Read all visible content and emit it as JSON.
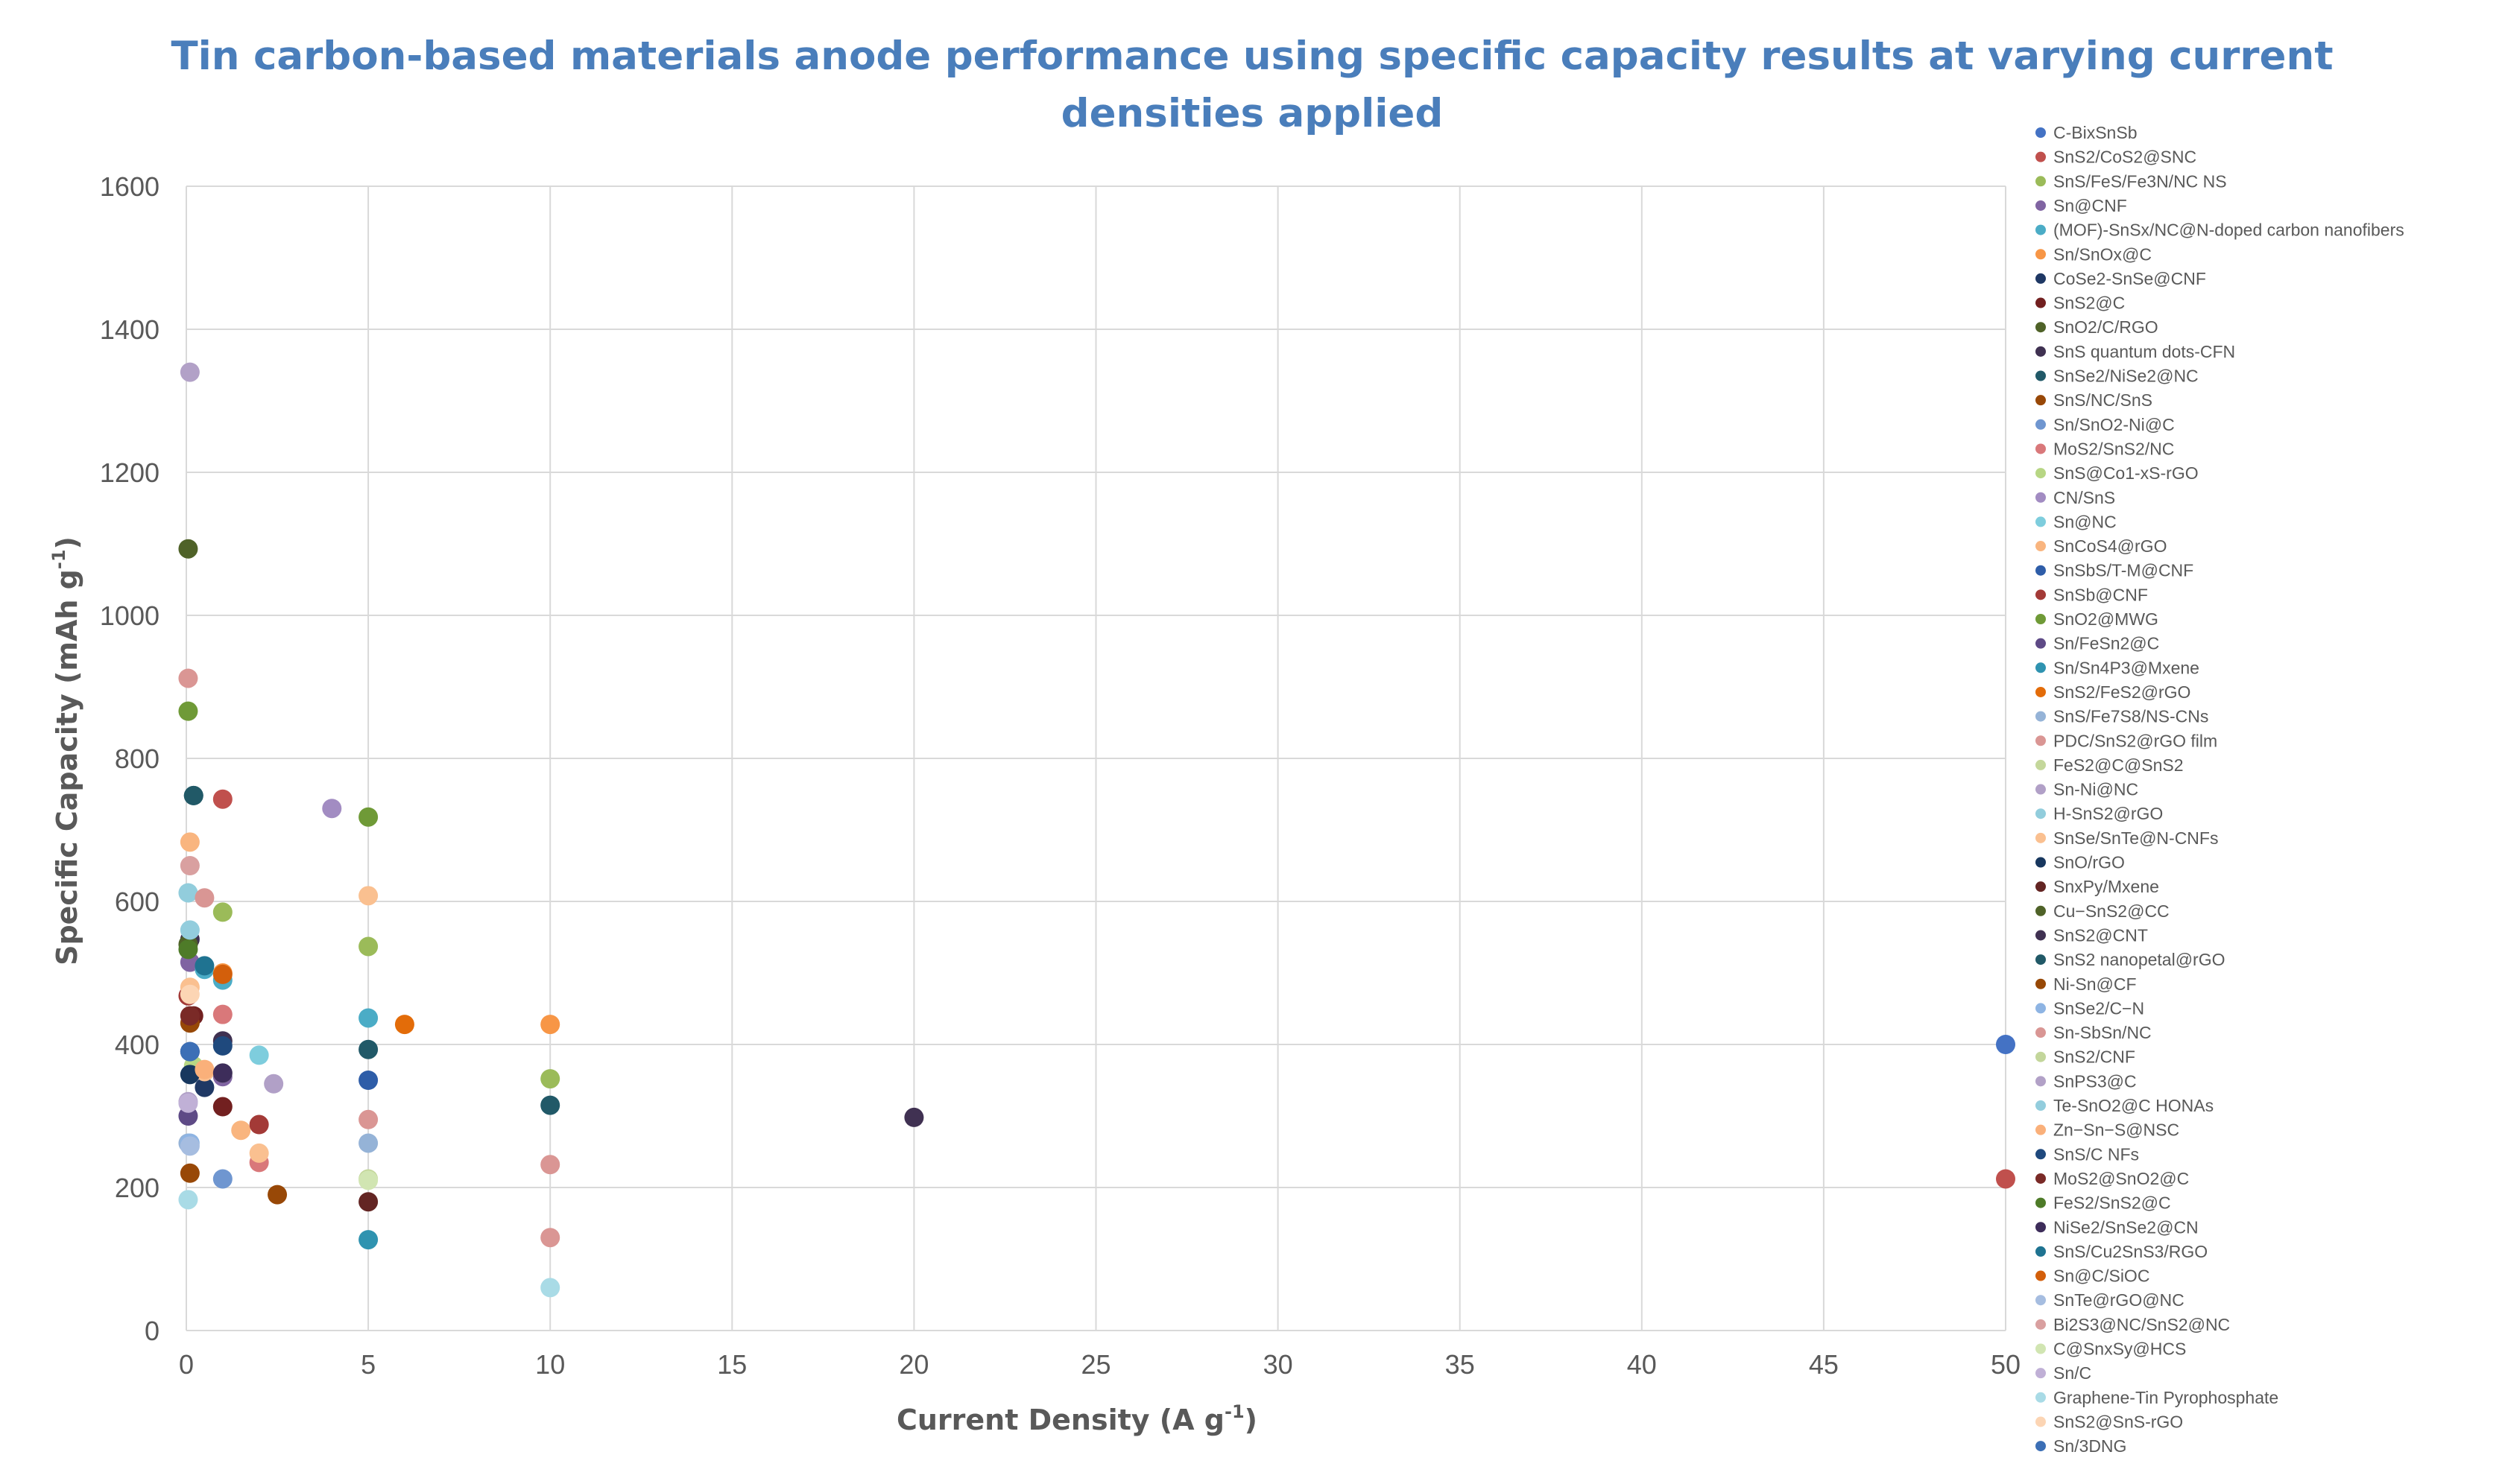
{
  "chart_data": {
    "type": "scatter",
    "title": "Tin carbon-based materials anode performance using specific capacity results at varying current densities applied",
    "title_lines": [
      "Tin carbon-based materials anode performance using specific capacity results at varying current",
      "densities applied"
    ],
    "xlabel": "Current Density (A g-1)",
    "xlabel_parts": {
      "main": "Current Density (A g",
      "sup": "-1",
      "end": ")"
    },
    "ylabel": "Specific Capacity (mAh g-1)",
    "ylabel_parts": {
      "main": "Specific Capacity (mAh g",
      "sup": "-1",
      "end": ")"
    },
    "xlim": [
      0,
      50
    ],
    "ylim": [
      0,
      1600
    ],
    "xticks": [
      0,
      5,
      10,
      15,
      20,
      25,
      30,
      35,
      40,
      45,
      50
    ],
    "yticks": [
      0,
      200,
      400,
      600,
      800,
      1000,
      1200,
      1400,
      1600
    ],
    "grid": true,
    "legend_position": "right",
    "series": [
      {
        "name": "C-BixSnSb",
        "color": "#4472c4",
        "points": [
          [
            50,
            400
          ]
        ]
      },
      {
        "name": "SnS2/CoS2@SNC",
        "color": "#c0504d",
        "points": [
          [
            1,
            743
          ],
          [
            50,
            212
          ]
        ]
      },
      {
        "name": "SnS/FeS/Fe3N/NC NS",
        "color": "#9bbb59",
        "points": [
          [
            1,
            585
          ],
          [
            5,
            537
          ],
          [
            10,
            352
          ]
        ]
      },
      {
        "name": "Sn@CNF",
        "color": "#8064a2",
        "points": [
          [
            0.1,
            515
          ],
          [
            1,
            355
          ]
        ]
      },
      {
        "name": "(MOF)-SnSx/NC@N-doped carbon nanofibers",
        "color": "#4bacc6",
        "points": [
          [
            0.5,
            505
          ],
          [
            1,
            490
          ],
          [
            5,
            437
          ]
        ]
      },
      {
        "name": "Sn/SnOx@C",
        "color": "#f79646",
        "points": [
          [
            1,
            500
          ],
          [
            10,
            428
          ]
        ]
      },
      {
        "name": "CoSe2-SnSe@CNF",
        "color": "#1f3864",
        "points": [
          [
            0.1,
            390
          ],
          [
            0.5,
            340
          ]
        ]
      },
      {
        "name": "SnS2@C",
        "color": "#722020",
        "points": [
          [
            0.2,
            440
          ],
          [
            1,
            313
          ]
        ]
      },
      {
        "name": "SnO2/C/RGO",
        "color": "#4f6228",
        "points": [
          [
            0.05,
            1093
          ]
        ]
      },
      {
        "name": "SnS quantum dots-CFN",
        "color": "#3f3151",
        "points": [
          [
            0.1,
            547
          ],
          [
            1,
            405
          ]
        ]
      },
      {
        "name": "SnSe2/NiSe2@NC",
        "color": "#215968",
        "points": [
          [
            0.2,
            748
          ],
          [
            5,
            393
          ],
          [
            10,
            315
          ]
        ]
      },
      {
        "name": "SnS/NC/SnS",
        "color": "#984807",
        "points": [
          [
            0.1,
            220
          ],
          [
            2.5,
            190
          ]
        ]
      },
      {
        "name": "Sn/SnO2-Ni@C",
        "color": "#6f96d0",
        "points": [
          [
            1,
            212
          ]
        ]
      },
      {
        "name": "MoS2/SnS2/NC",
        "color": "#d9787a",
        "points": [
          [
            1,
            442
          ],
          [
            2,
            235
          ]
        ]
      },
      {
        "name": "SnS@Co1-xS-rGO",
        "color": "#b7d684",
        "points": [
          [
            0.2,
            370
          ]
        ]
      },
      {
        "name": "CN/SnS",
        "color": "#a28cc2",
        "points": [
          [
            4,
            730
          ]
        ]
      },
      {
        "name": "Sn@NC",
        "color": "#7ecddd",
        "points": [
          [
            2,
            385
          ]
        ]
      },
      {
        "name": "SnCoS4@rGO",
        "color": "#f9b57f",
        "points": [
          [
            0.1,
            683
          ],
          [
            1.5,
            280
          ]
        ]
      },
      {
        "name": "SnSbS/T-M@CNF",
        "color": "#2e5da8",
        "points": [
          [
            5,
            350
          ]
        ]
      },
      {
        "name": "SnSb@CNF",
        "color": "#a33a37",
        "points": [
          [
            0.05,
            468
          ],
          [
            2,
            288
          ]
        ]
      },
      {
        "name": "SnO2@MWG",
        "color": "#6f9a37",
        "points": [
          [
            0.05,
            866
          ],
          [
            5,
            718
          ]
        ]
      },
      {
        "name": "Sn/FeSn2@C",
        "color": "#5e4a86",
        "points": [
          [
            0.05,
            300
          ]
        ]
      },
      {
        "name": "Sn/Sn4P3@Mxene",
        "color": "#2f93b0",
        "points": [
          [
            5,
            127
          ]
        ]
      },
      {
        "name": "SnS2/FeS2@rGO",
        "color": "#e36c09",
        "points": [
          [
            6,
            428
          ]
        ]
      },
      {
        "name": "SnS/Fe7S8/NS-CNs",
        "color": "#95b3d7",
        "points": [
          [
            0.05,
            262
          ],
          [
            5,
            262
          ]
        ]
      },
      {
        "name": "PDC/SnS2@rGO film",
        "color": "#da9694",
        "points": [
          [
            0.05,
            912
          ],
          [
            5,
            295
          ],
          [
            10,
            130
          ],
          [
            10,
            232
          ]
        ]
      },
      {
        "name": "FeS2@C@SnS2",
        "color": "#c4d79b",
        "points": [
          [
            5,
            212
          ]
        ]
      },
      {
        "name": "Sn-Ni@NC",
        "color": "#b1a0c7",
        "points": [
          [
            0.05,
            320
          ],
          [
            2.4,
            345
          ]
        ]
      },
      {
        "name": "H-SnS2@rGO",
        "color": "#92cddc",
        "points": [
          [
            0.05,
            612
          ]
        ]
      },
      {
        "name": "SnSe/SnTe@N-CNFs",
        "color": "#fac090",
        "points": [
          [
            0.1,
            480
          ],
          [
            0.5,
            362
          ],
          [
            2,
            248
          ],
          [
            5,
            608
          ]
        ]
      },
      {
        "name": "SnO/rGO",
        "color": "#17375e",
        "points": [
          [
            0.1,
            358
          ]
        ]
      },
      {
        "name": "SnxPy/Mxene",
        "color": "#632523",
        "points": [
          [
            5,
            180
          ]
        ]
      },
      {
        "name": "Cu−SnS2@CC",
        "color": "#4f6228",
        "points": [
          [
            0.05,
            540
          ]
        ]
      },
      {
        "name": "SnS2@CNT",
        "color": "#403152",
        "points": [
          [
            20,
            298
          ]
        ]
      },
      {
        "name": "SnS2 nanopetal@rGO",
        "color": "#215967",
        "points": [
          [
            0.2,
            748
          ]
        ]
      },
      {
        "name": "Ni-Sn@CF",
        "color": "#974806",
        "points": [
          [
            0.1,
            430
          ]
        ]
      },
      {
        "name": "SnSe2/C−N",
        "color": "#8eb4e3",
        "points": [
          [
            0.1,
            262
          ]
        ]
      },
      {
        "name": "Sn-SbSn/NC",
        "color": "#d99694",
        "points": [
          [
            0.5,
            605
          ]
        ]
      },
      {
        "name": "SnS2/CNF",
        "color": "#c3d69b",
        "points": [
          [
            1,
            360
          ]
        ]
      },
      {
        "name": "SnPS3@C",
        "color": "#b2a1c7",
        "points": [
          [
            0.1,
            1340
          ]
        ]
      },
      {
        "name": "Te-SnO2@C HONAs",
        "color": "#93cddd",
        "points": [
          [
            0.1,
            560
          ]
        ]
      },
      {
        "name": "Zn−Sn−S@NSC",
        "color": "#fab07a",
        "points": [
          [
            0.5,
            365
          ]
        ]
      },
      {
        "name": "SnS/C NFs",
        "color": "#1f497d",
        "points": [
          [
            1,
            398
          ]
        ]
      },
      {
        "name": "MoS2@SnO2@C",
        "color": "#7a2a27",
        "points": [
          [
            0.1,
            440
          ]
        ]
      },
      {
        "name": "FeS2/SnS2@C",
        "color": "#4e7b28",
        "points": [
          [
            0.05,
            533
          ]
        ]
      },
      {
        "name": "NiSe2/SnSe2@CN",
        "color": "#3d2d5a",
        "points": [
          [
            1,
            360
          ]
        ]
      },
      {
        "name": "SnS/Cu2SnS3/RGO",
        "color": "#1f7391",
        "points": [
          [
            0.5,
            510
          ]
        ]
      },
      {
        "name": "Sn@C/SiOC",
        "color": "#d35f0b",
        "points": [
          [
            1,
            498
          ]
        ]
      },
      {
        "name": "SnTe@rGO@NC",
        "color": "#a6bde0",
        "points": [
          [
            0.1,
            258
          ]
        ]
      },
      {
        "name": "Bi2S3@NC/SnS2@NC",
        "color": "#d9a0a0",
        "points": [
          [
            0.1,
            650
          ]
        ]
      },
      {
        "name": "C@SnxSy@HCS",
        "color": "#d1e5b2",
        "points": [
          [
            5,
            210
          ]
        ]
      },
      {
        "name": "Sn/C",
        "color": "#c0b0d6",
        "points": [
          [
            0.05,
            318
          ]
        ]
      },
      {
        "name": "Graphene-Tin Pyrophosphate",
        "color": "#a9dbe6",
        "points": [
          [
            0.05,
            183
          ],
          [
            10,
            60
          ]
        ]
      },
      {
        "name": "SnS2@SnS-rGO",
        "color": "#fcd5b4",
        "points": [
          [
            0.1,
            470
          ]
        ]
      },
      {
        "name": "Sn/3DNG",
        "color": "#3c6fb6",
        "points": [
          [
            0.1,
            390
          ]
        ]
      }
    ]
  }
}
